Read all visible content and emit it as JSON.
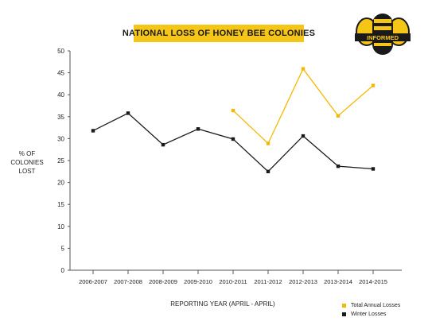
{
  "chart_data": {
    "type": "line",
    "title": "NATIONAL LOSS OF HONEY BEE COLONIES",
    "xlabel": "REPORTING YEAR (APRIL - APRIL)",
    "ylabel": "% OF COLONIES LOST",
    "ylabel_lines": [
      "% OF",
      "COLONIES",
      "LOST"
    ],
    "ylim": [
      0,
      50
    ],
    "yticks": [
      "0",
      "5",
      "10",
      "15",
      "20",
      "25",
      "30",
      "35",
      "40",
      "45",
      "50"
    ],
    "grid": false,
    "legend_position": "bottom-right",
    "categories": [
      "2006-2007",
      "2007-2008",
      "2008-2009",
      "2009-2010",
      "2010-2011",
      "2011-2012",
      "2012-2013",
      "2013-2014",
      "2014-2015"
    ],
    "series": [
      {
        "name": "Total Annual Losses",
        "color": "#f5b800",
        "values": [
          null,
          null,
          null,
          null,
          36.4,
          28.9,
          45.9,
          35.2,
          42.1
        ]
      },
      {
        "name": "Winter Losses",
        "color": "#1a1a1a",
        "values": [
          31.8,
          35.8,
          28.6,
          32.2,
          29.9,
          22.5,
          30.6,
          23.7,
          23.1
        ]
      }
    ]
  },
  "logo": {
    "text": "INFORMED",
    "colors": {
      "body": "#f5c518",
      "dark": "#1a1a1a"
    }
  }
}
